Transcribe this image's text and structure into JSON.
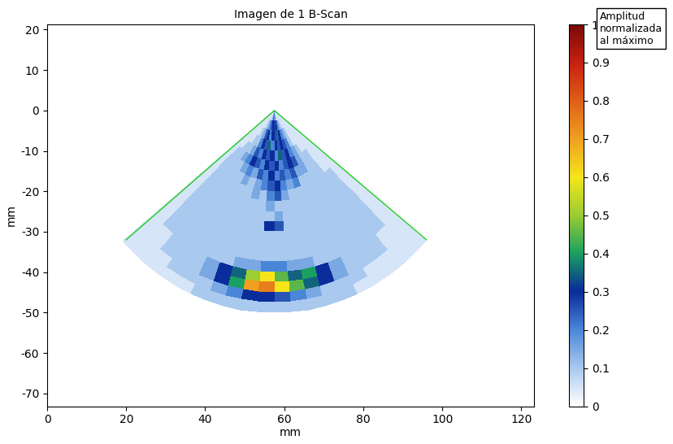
{
  "chart_data": {
    "type": "heatmap",
    "title": "Imagen de 1 B-Scan",
    "x_label": "mm",
    "y_label": "mm",
    "xlim": [
      0,
      123.3
    ],
    "ylim": [
      -73.2,
      21.3
    ],
    "xticks": [
      0,
      20,
      40,
      60,
      80,
      100,
      120
    ],
    "yticks": [
      -70,
      -60,
      -50,
      -40,
      -30,
      -20,
      -10,
      0,
      10,
      20
    ],
    "colorbar_label": "Amplitud\nnormalizada\nal máximo",
    "colorbar_range": [
      0,
      1
    ],
    "colorbar_ticks": [
      0,
      0.1,
      0.2,
      0.3,
      0.4,
      0.5,
      0.6,
      0.7,
      0.8,
      0.9,
      1
    ],
    "origin": {
      "x": 57.5,
      "y": 0
    },
    "range_edges": [
      0,
      2.5,
      5,
      7.5,
      10,
      12.5,
      15,
      17.5,
      20,
      22.5,
      25,
      27.5,
      30,
      32.5,
      35,
      37.5,
      40,
      42.5,
      45,
      47.5,
      50
    ],
    "angle_edges": [
      -50,
      -45,
      -40,
      -35,
      -30,
      -25,
      -20,
      -15,
      -10,
      -5,
      0,
      5,
      10,
      15,
      20,
      25,
      30,
      35,
      40,
      45,
      50
    ],
    "cells": [
      [
        0.05,
        0.05,
        0.05,
        0.05,
        0.05,
        0.05,
        0.05,
        0.1,
        0.15,
        0.2,
        0.2,
        0.15,
        0.1,
        0.05,
        0.05,
        0.05,
        0.05,
        0.05,
        0.05,
        0.05
      ],
      [
        0.05,
        0.05,
        0.05,
        0.05,
        0.05,
        0.1,
        0.15,
        0.2,
        0.25,
        0.3,
        0.25,
        0.3,
        0.2,
        0.15,
        0.1,
        0.05,
        0.05,
        0.05,
        0.05,
        0.05
      ],
      [
        0.05,
        0.05,
        0.05,
        0.05,
        0.1,
        0.15,
        0.25,
        0.3,
        0.2,
        0.3,
        0.35,
        0.25,
        0.3,
        0.2,
        0.15,
        0.1,
        0.05,
        0.05,
        0.05,
        0.05
      ],
      [
        0.05,
        0.05,
        0.05,
        0.1,
        0.1,
        0.2,
        0.3,
        0.25,
        0.35,
        0.2,
        0.3,
        0.25,
        0.3,
        0.25,
        0.2,
        0.1,
        0.05,
        0.05,
        0.05,
        0.05
      ],
      [
        0.05,
        0.05,
        0.1,
        0.1,
        0.15,
        0.25,
        0.2,
        0.3,
        0.25,
        0.3,
        0.2,
        0.35,
        0.25,
        0.3,
        0.2,
        0.15,
        0.1,
        0.05,
        0.05,
        0.05
      ],
      [
        0.05,
        0.1,
        0.1,
        0.15,
        0.2,
        0.3,
        0.25,
        0.2,
        0.3,
        0.25,
        0.3,
        0.2,
        0.25,
        0.3,
        0.25,
        0.15,
        0.1,
        0.1,
        0.05,
        0.05
      ],
      [
        0.05,
        0.1,
        0.1,
        0.1,
        0.15,
        0.2,
        0.15,
        0.25,
        0.2,
        0.3,
        0.2,
        0.25,
        0.2,
        0.25,
        0.15,
        0.15,
        0.1,
        0.1,
        0.05,
        0.05
      ],
      [
        0.05,
        0.1,
        0.1,
        0.1,
        0.1,
        0.15,
        0.1,
        0.15,
        0.2,
        0.25,
        0.3,
        0.2,
        0.15,
        0.2,
        0.1,
        0.1,
        0.1,
        0.1,
        0.05,
        0.05
      ],
      [
        0.05,
        0.1,
        0.1,
        0.1,
        0.1,
        0.1,
        0.1,
        0.15,
        0.1,
        0.2,
        0.25,
        0.15,
        0.1,
        0.1,
        0.1,
        0.1,
        0.1,
        0.1,
        0.1,
        0.05
      ],
      [
        0.05,
        0.1,
        0.1,
        0.1,
        0.1,
        0.1,
        0.1,
        0.1,
        0.1,
        0.15,
        0.1,
        0.1,
        0.1,
        0.1,
        0.1,
        0.1,
        0.1,
        0.1,
        0.1,
        0.05
      ],
      [
        0.05,
        0.1,
        0.1,
        0.1,
        0.1,
        0.1,
        0.1,
        0.1,
        0.1,
        0.1,
        0.15,
        0.1,
        0.1,
        0.1,
        0.1,
        0.1,
        0.1,
        0.1,
        0.1,
        0.05
      ],
      [
        0.05,
        0.1,
        0.1,
        0.1,
        0.1,
        0.1,
        0.1,
        0.1,
        0.1,
        0.3,
        0.25,
        0.1,
        0.1,
        0.1,
        0.1,
        0.1,
        0.1,
        0.1,
        0.1,
        0.05
      ],
      [
        0.05,
        0.1,
        0.1,
        0.1,
        0.1,
        0.1,
        0.1,
        0.1,
        0.1,
        0.1,
        0.1,
        0.1,
        0.1,
        0.1,
        0.1,
        0.1,
        0.1,
        0.1,
        0.1,
        0.05
      ],
      [
        0.05,
        0.1,
        0.1,
        0.1,
        0.1,
        0.1,
        0.1,
        0.1,
        0.1,
        0.1,
        0.1,
        0.1,
        0.1,
        0.1,
        0.1,
        0.1,
        0.1,
        0.1,
        0.1,
        0.05
      ],
      [
        0.05,
        0.1,
        0.1,
        0.1,
        0.1,
        0.1,
        0.1,
        0.1,
        0.1,
        0.1,
        0.1,
        0.1,
        0.1,
        0.1,
        0.1,
        0.1,
        0.1,
        0.1,
        0.1,
        0.05
      ],
      [
        0.05,
        0.1,
        0.1,
        0.1,
        0.1,
        0.1,
        0.1,
        0.15,
        0.15,
        0.2,
        0.2,
        0.15,
        0.15,
        0.1,
        0.1,
        0.1,
        0.1,
        0.1,
        0.1,
        0.05
      ],
      [
        0.05,
        0.05,
        0.1,
        0.1,
        0.1,
        0.15,
        0.3,
        0.35,
        0.5,
        0.6,
        0.45,
        0.35,
        0.4,
        0.3,
        0.15,
        0.1,
        0.1,
        0.1,
        0.05,
        0.05
      ],
      [
        0.05,
        0.05,
        0.1,
        0.1,
        0.1,
        0.15,
        0.3,
        0.4,
        0.7,
        0.75,
        0.6,
        0.45,
        0.35,
        0.3,
        0.15,
        0.1,
        0.1,
        0.1,
        0.05,
        0.05
      ],
      [
        0.05,
        0.05,
        0.05,
        0.1,
        0.1,
        0.1,
        0.15,
        0.2,
        0.3,
        0.3,
        0.25,
        0.2,
        0.15,
        0.1,
        0.1,
        0.1,
        0.05,
        0.05,
        0.05,
        0.05
      ],
      [
        0.05,
        0.05,
        0.05,
        0.05,
        0.05,
        0.1,
        0.1,
        0.1,
        0.1,
        0.1,
        0.1,
        0.1,
        0.1,
        0.1,
        0.1,
        0.05,
        0.05,
        0.05,
        0.05,
        0.05
      ]
    ],
    "sector_edges": {
      "x": [
        20,
        57.5,
        96
      ],
      "y": [
        -32,
        0,
        -32
      ],
      "color": "#22cc22"
    }
  }
}
